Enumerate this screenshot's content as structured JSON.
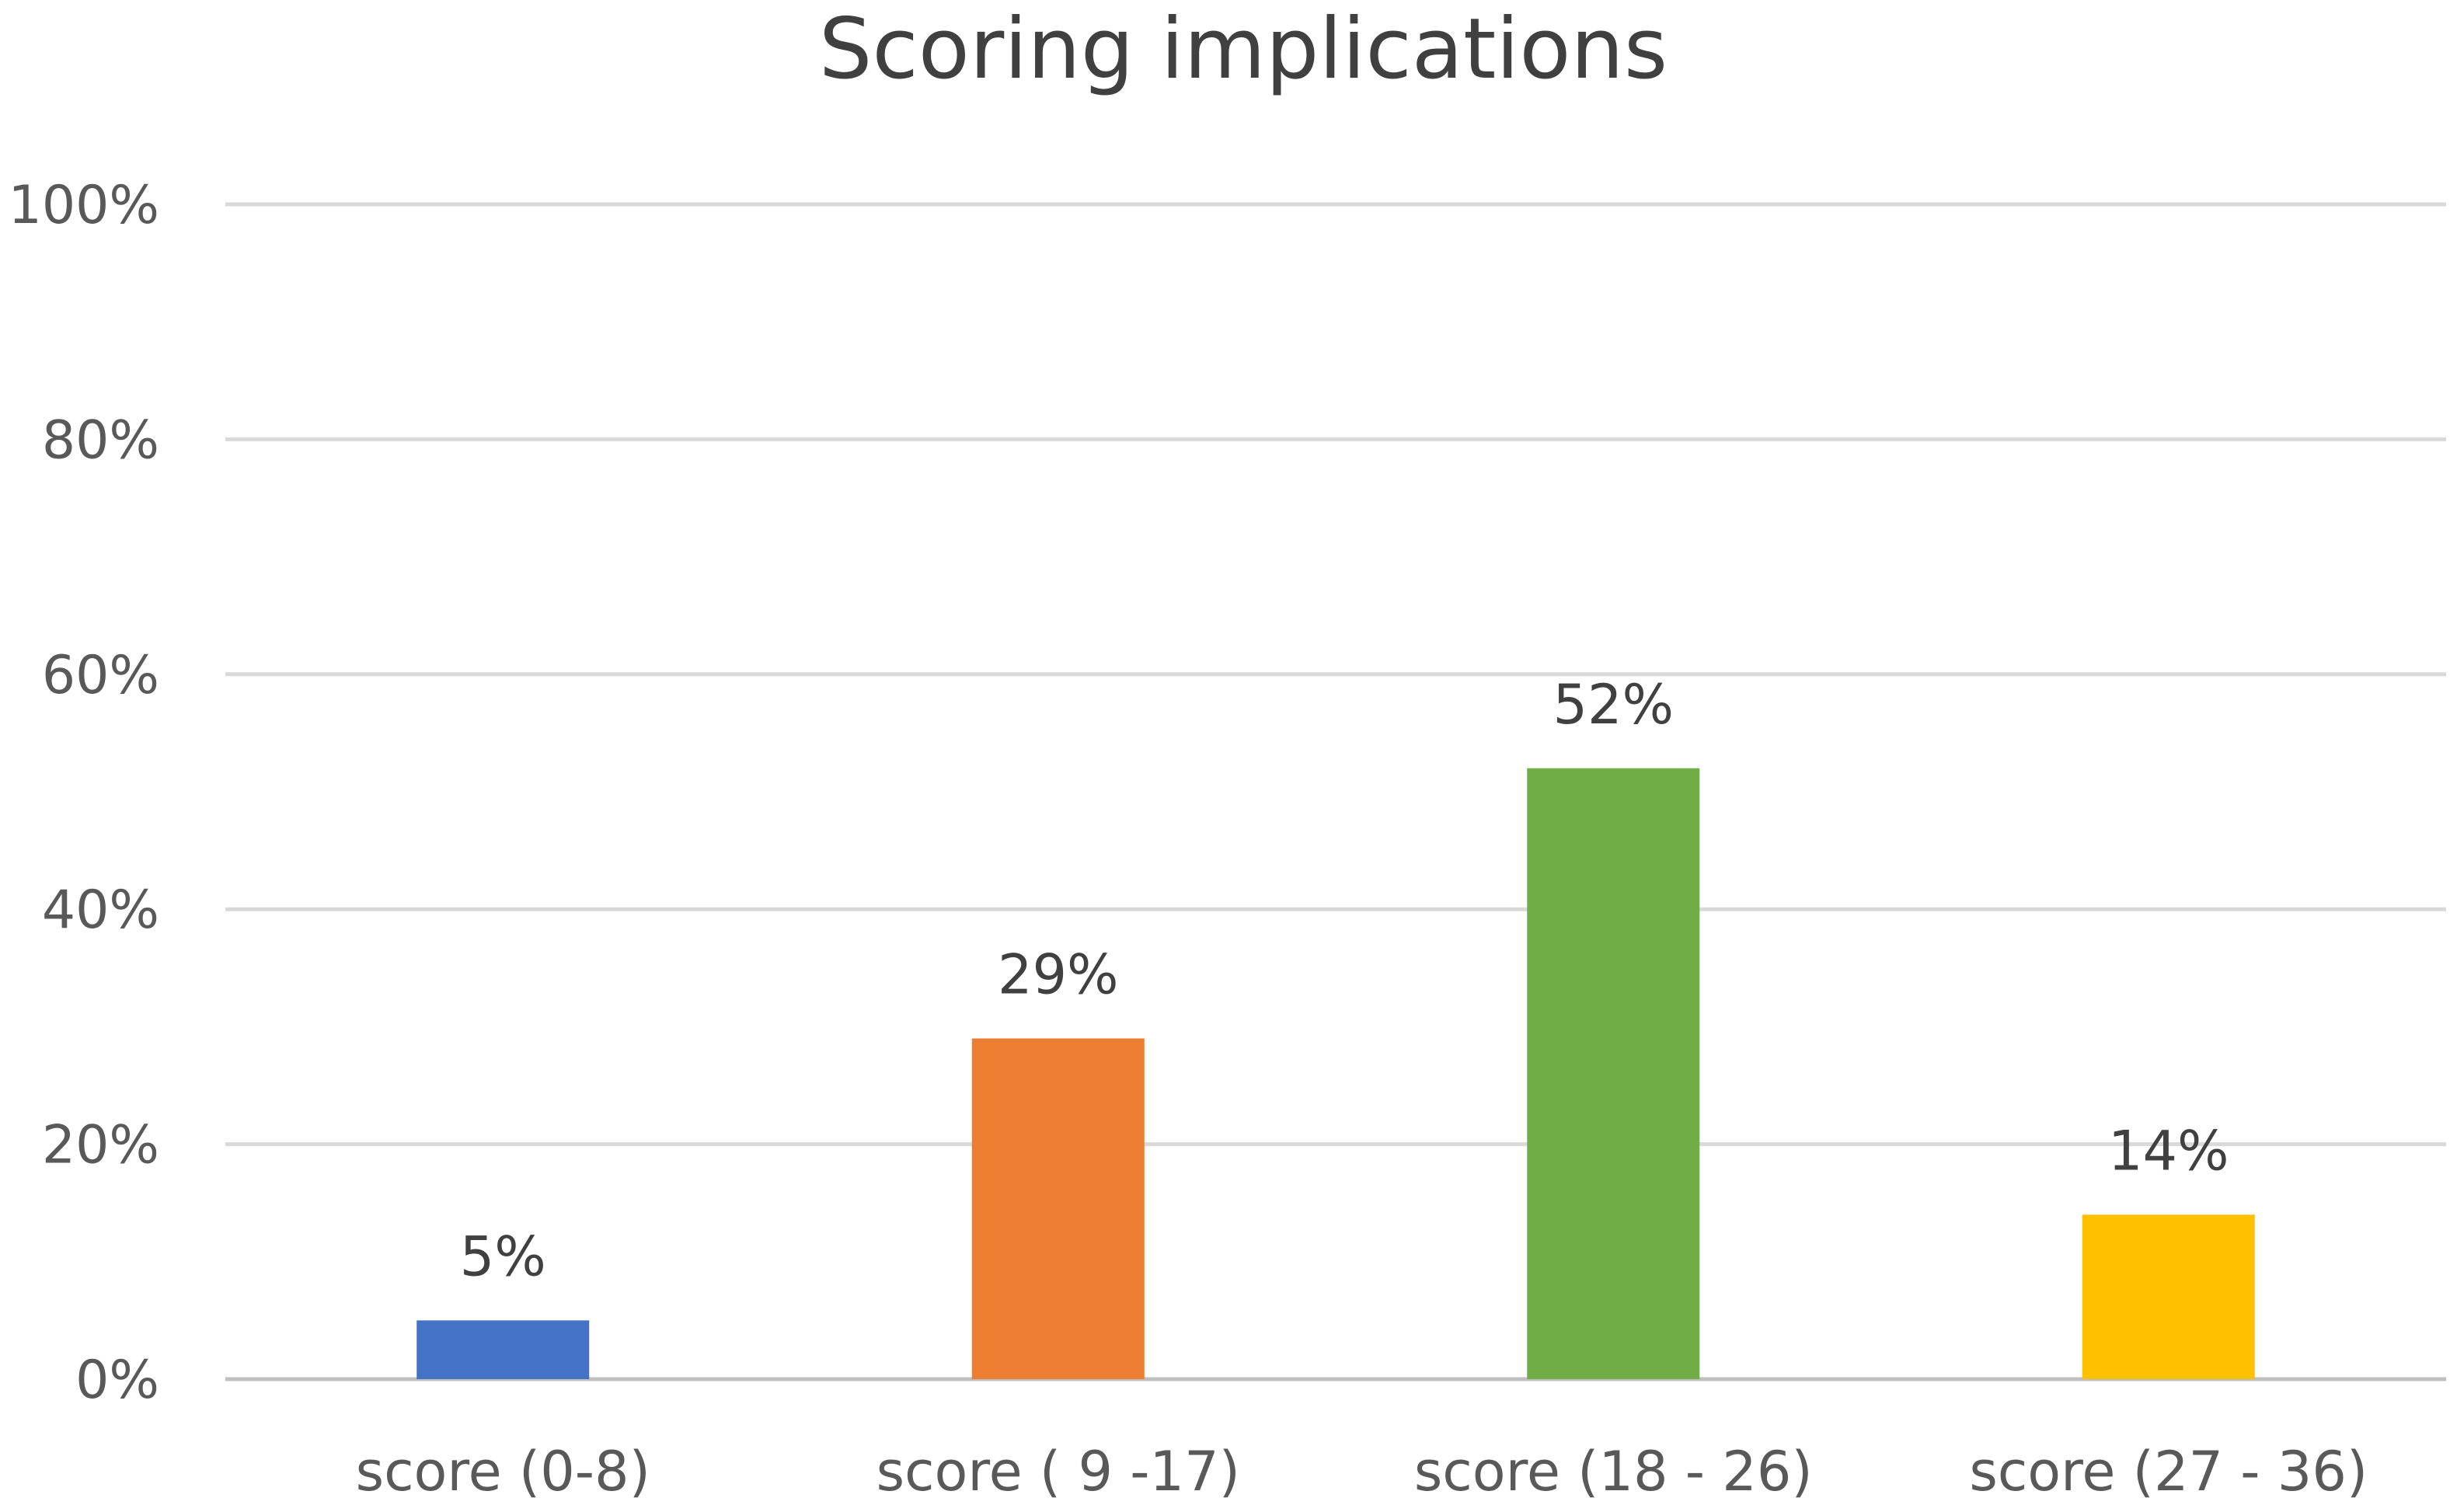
{
  "chart_data": {
    "type": "bar",
    "title": "Scoring implications",
    "categories": [
      "score (0-8)",
      "score ( 9 -17)",
      "score (18 - 26)",
      "score (27 - 36)"
    ],
    "values": [
      5,
      29,
      52,
      14
    ],
    "data_labels": [
      "5%",
      "29%",
      "52%",
      "14%"
    ],
    "colors": [
      "#4472c4",
      "#ed7d31",
      "#70ad47",
      "#ffc000"
    ],
    "ylim": [
      0,
      100
    ],
    "yticks": [
      0,
      20,
      40,
      60,
      80,
      100
    ],
    "ytick_labels": [
      "0%",
      "20%",
      "40%",
      "60%",
      "80%",
      "100%"
    ],
    "grid": true,
    "legend": "none"
  }
}
